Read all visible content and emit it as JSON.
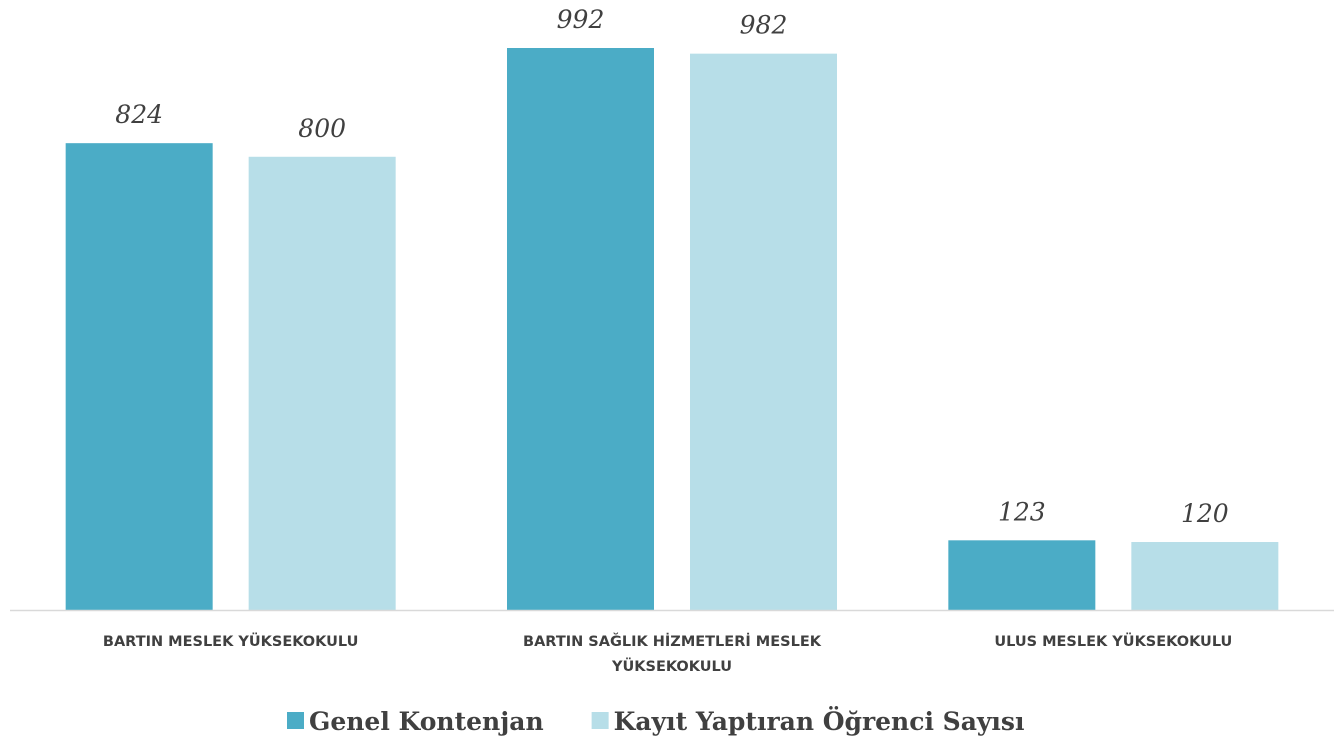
{
  "chart_data": {
    "type": "bar",
    "categories": [
      "BARTIN MESLEK YÜKSEKOKULU",
      "BARTIN SAĞLIK HİZMETLERİ MESLEK YÜKSEKOKULU",
      "ULUS MESLEK YÜKSEKOKULU"
    ],
    "series": [
      {
        "name": "Genel Kontenjan",
        "color": "#4bacc6",
        "values": [
          824,
          992,
          123
        ]
      },
      {
        "name": "Kayıt Yaptıran Öğrenci Sayısı",
        "color": "#b7dee8",
        "values": [
          800,
          982,
          120
        ]
      }
    ],
    "legend": "bottom"
  }
}
